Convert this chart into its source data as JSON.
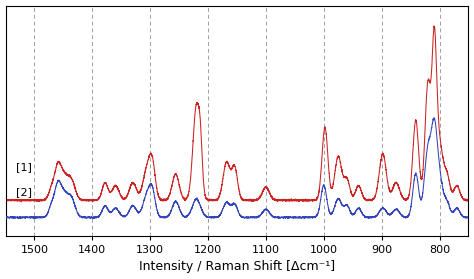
{
  "xlim": [
    1550,
    750
  ],
  "xlabel": "Intensity / Raman Shift [Δcm⁻¹]",
  "legend": [
    "[1]",
    "[2]"
  ],
  "xticks": [
    1500,
    1400,
    1300,
    1200,
    1100,
    1000,
    900,
    800
  ],
  "dashed_lines": [
    1500,
    1400,
    1300,
    1200,
    1100,
    1000,
    900,
    800
  ],
  "line1_color": "#cc2222",
  "line2_color": "#3344bb",
  "background_color": "#ffffff",
  "label_fontsize": 9,
  "tick_fontsize": 8
}
